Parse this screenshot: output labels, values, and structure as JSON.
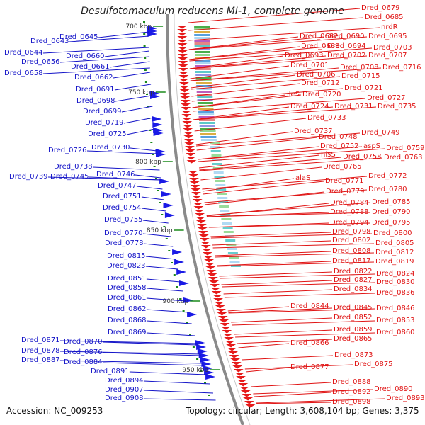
{
  "title": "Desulfotomaculum reducens MI-1, complete genome",
  "accession": "Accession: NC_009253",
  "topology": "Topology: circular; Length: 3,608,104 bp; Genes: 3,375",
  "colors": {
    "left_label": "#1414c8",
    "right_label": "#e01414",
    "forward_gene": "#1a1ae6",
    "reverse_gene": "#e61a1a",
    "backbone": "#8a8a8a",
    "tick": "#1a8a1a"
  },
  "kbp_ticks": [
    "700 kbp",
    "750 kbp",
    "800 kbp",
    "850 kbp",
    "900 kbp",
    "950 kbp"
  ],
  "left_labels": [
    {
      "text": "Dred_0643"
    },
    {
      "text": "Dred_0645"
    },
    {
      "text": "Dred_0644"
    },
    {
      "text": "Dred_0656"
    },
    {
      "text": "Dred_0658"
    },
    {
      "text": "Dred_0660"
    },
    {
      "text": "Dred_0661"
    },
    {
      "text": "Dred_0662"
    },
    {
      "text": "Dred_0691"
    },
    {
      "text": "Dred_0698"
    },
    {
      "text": "Dred_0699"
    },
    {
      "text": "Dred_0719"
    },
    {
      "text": "Dred_0725"
    },
    {
      "text": "Dred_0730"
    },
    {
      "text": "Dred_0726"
    },
    {
      "text": "Dred_0738"
    },
    {
      "text": "Dred_0739"
    },
    {
      "text": "Dred_0745"
    },
    {
      "text": "Dred_0746"
    },
    {
      "text": "Dred_0747"
    },
    {
      "text": "Dred_0751"
    },
    {
      "text": "Dred_0754"
    },
    {
      "text": "Dred_0755"
    },
    {
      "text": "Dred_0770"
    },
    {
      "text": "Dred_0778"
    },
    {
      "text": "Dred_0815"
    },
    {
      "text": "Dred_0823"
    },
    {
      "text": "Dred_0851"
    },
    {
      "text": "Dred_0858"
    },
    {
      "text": "Dred_0861"
    },
    {
      "text": "Dred_0862"
    },
    {
      "text": "Dred_0868"
    },
    {
      "text": "Dred_0869"
    },
    {
      "text": "Dred_0871"
    },
    {
      "text": "Dred_0870"
    },
    {
      "text": "Dred_0878"
    },
    {
      "text": "Dred_0876"
    },
    {
      "text": "Dred_0887"
    },
    {
      "text": "Dred_0884"
    },
    {
      "text": "Dred_0891"
    },
    {
      "text": "Dred_0894"
    },
    {
      "text": "Dred_0907"
    },
    {
      "text": "Dred_0908"
    }
  ],
  "right_labels": [
    {
      "text": "Dred_0679"
    },
    {
      "text": "Dred_0685"
    },
    {
      "text": "nrdR"
    },
    {
      "text": "Dred_0682"
    },
    {
      "text": "Dred_0690"
    },
    {
      "text": "Dred_0695"
    },
    {
      "text": "Dred_0688"
    },
    {
      "text": "Dred_0694"
    },
    {
      "text": "Dred_0703"
    },
    {
      "text": "Dred_0693"
    },
    {
      "text": "Dred_0702"
    },
    {
      "text": "Dred_0707"
    },
    {
      "text": "Dred_0701"
    },
    {
      "text": "Dred_0708"
    },
    {
      "text": "Dred_0716"
    },
    {
      "text": "Dred_0706"
    },
    {
      "text": "Dred_0715"
    },
    {
      "text": "Dred_0712"
    },
    {
      "text": "Dred_0721"
    },
    {
      "text": "ileS"
    },
    {
      "text": "Dred_0720"
    },
    {
      "text": "Dred_0727"
    },
    {
      "text": "Dred_0724"
    },
    {
      "text": "Dred_0731"
    },
    {
      "text": "Dred_0735"
    },
    {
      "text": "Dred_0733"
    },
    {
      "text": "Dred_0737"
    },
    {
      "text": "Dred_0748"
    },
    {
      "text": "Dred_0749"
    },
    {
      "text": "Dred_0752"
    },
    {
      "text": "aspS"
    },
    {
      "text": "Dred_0759"
    },
    {
      "text": "hisS"
    },
    {
      "text": "Dred_0758"
    },
    {
      "text": "Dred_0763"
    },
    {
      "text": "Dred_0765"
    },
    {
      "text": "alaS"
    },
    {
      "text": "Dred_0771"
    },
    {
      "text": "Dred_0772"
    },
    {
      "text": "Dred_0779"
    },
    {
      "text": "Dred_0780"
    },
    {
      "text": "Dred_0784"
    },
    {
      "text": "Dred_0785"
    },
    {
      "text": "Dred_0788"
    },
    {
      "text": "Dred_0790"
    },
    {
      "text": "Dred_0794"
    },
    {
      "text": "Dred_0795"
    },
    {
      "text": "Dred_0798"
    },
    {
      "text": "Dred_0800"
    },
    {
      "text": "Dred_0802"
    },
    {
      "text": "Dred_0805"
    },
    {
      "text": "Dred_0808"
    },
    {
      "text": "Dred_0812"
    },
    {
      "text": "Dred_0817"
    },
    {
      "text": "Dred_0819"
    },
    {
      "text": "Dred_0822"
    },
    {
      "text": "Dred_0824"
    },
    {
      "text": "Dred_0827"
    },
    {
      "text": "Dred_0830"
    },
    {
      "text": "Dred_0834"
    },
    {
      "text": "Dred_0836"
    },
    {
      "text": "Dred_0844"
    },
    {
      "text": "Dred_0845"
    },
    {
      "text": "Dred_0846"
    },
    {
      "text": "Dred_0852"
    },
    {
      "text": "Dred_0853"
    },
    {
      "text": "Dred_0859"
    },
    {
      "text": "Dred_0860"
    },
    {
      "text": "Dred_0865"
    },
    {
      "text": "Dred_0866"
    },
    {
      "text": "Dred_0873"
    },
    {
      "text": "Dred_0875"
    },
    {
      "text": "Dred_0877"
    },
    {
      "text": "Dred_0888"
    },
    {
      "text": "Dred_0890"
    },
    {
      "text": "Dred_0892"
    },
    {
      "text": "Dred_0893"
    },
    {
      "text": "Dred_0898"
    }
  ]
}
